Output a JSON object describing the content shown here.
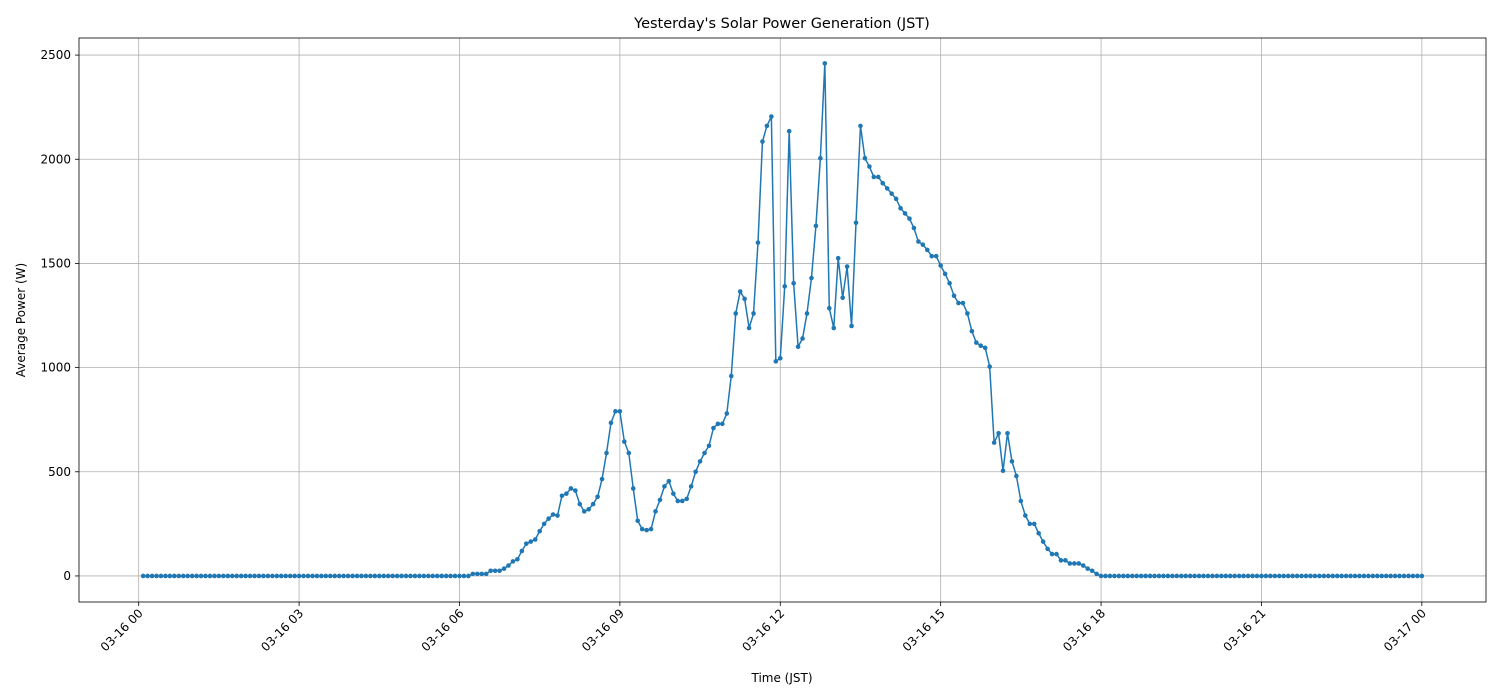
{
  "chart_data": {
    "type": "line",
    "title": "Yesterday's Solar Power Generation (JST)",
    "x_label": "Time (JST)",
    "y_label": "Average Power (W)",
    "color": "#1f77b4",
    "grid": true,
    "xlim": [
      -67,
      1512
    ],
    "ylim": [
      -125,
      2582
    ],
    "xticks": [
      {
        "value": 0,
        "label": "03-16 00"
      },
      {
        "value": 180,
        "label": "03-16 03"
      },
      {
        "value": 360,
        "label": "03-16 06"
      },
      {
        "value": 540,
        "label": "03-16 09"
      },
      {
        "value": 720,
        "label": "03-16 12"
      },
      {
        "value": 900,
        "label": "03-16 15"
      },
      {
        "value": 1080,
        "label": "03-16 18"
      },
      {
        "value": 1260,
        "label": "03-16 21"
      },
      {
        "value": 1440,
        "label": "03-17 00"
      }
    ],
    "yticks": [
      0,
      500,
      1000,
      1500,
      2000,
      2500
    ],
    "x": [
      5,
      10,
      15,
      20,
      25,
      30,
      35,
      40,
      45,
      50,
      55,
      60,
      65,
      70,
      75,
      80,
      85,
      90,
      95,
      100,
      105,
      110,
      115,
      120,
      125,
      130,
      135,
      140,
      145,
      150,
      155,
      160,
      165,
      170,
      175,
      180,
      185,
      190,
      195,
      200,
      205,
      210,
      215,
      220,
      225,
      230,
      235,
      240,
      245,
      250,
      255,
      260,
      265,
      270,
      275,
      280,
      285,
      290,
      295,
      300,
      305,
      310,
      315,
      320,
      325,
      330,
      335,
      340,
      345,
      350,
      355,
      360,
      365,
      370,
      375,
      380,
      385,
      390,
      395,
      400,
      405,
      410,
      415,
      420,
      425,
      430,
      435,
      440,
      445,
      450,
      455,
      460,
      465,
      470,
      475,
      480,
      485,
      490,
      495,
      500,
      505,
      510,
      515,
      520,
      525,
      530,
      535,
      540,
      545,
      550,
      555,
      560,
      565,
      570,
      575,
      580,
      585,
      590,
      595,
      600,
      605,
      610,
      615,
      620,
      625,
      630,
      635,
      640,
      645,
      650,
      655,
      660,
      665,
      670,
      675,
      680,
      685,
      690,
      695,
      700,
      705,
      710,
      715,
      720,
      725,
      730,
      735,
      740,
      745,
      750,
      755,
      760,
      765,
      770,
      775,
      780,
      785,
      790,
      795,
      800,
      805,
      810,
      815,
      820,
      825,
      830,
      835,
      840,
      845,
      850,
      855,
      860,
      865,
      870,
      875,
      880,
      885,
      890,
      895,
      900,
      905,
      910,
      915,
      920,
      925,
      930,
      935,
      940,
      945,
      950,
      955,
      960,
      965,
      970,
      975,
      980,
      985,
      990,
      995,
      1000,
      1005,
      1010,
      1015,
      1020,
      1025,
      1030,
      1035,
      1040,
      1045,
      1050,
      1055,
      1060,
      1065,
      1070,
      1075,
      1080,
      1085,
      1090,
      1095,
      1100,
      1105,
      1110,
      1115,
      1120,
      1125,
      1130,
      1135,
      1140,
      1145,
      1150,
      1155,
      1160,
      1165,
      1170,
      1175,
      1180,
      1185,
      1190,
      1195,
      1200,
      1205,
      1210,
      1215,
      1220,
      1225,
      1230,
      1235,
      1240,
      1245,
      1250,
      1255,
      1260,
      1265,
      1270,
      1275,
      1280,
      1285,
      1290,
      1295,
      1300,
      1305,
      1310,
      1315,
      1320,
      1325,
      1330,
      1335,
      1340,
      1345,
      1350,
      1355,
      1360,
      1365,
      1370,
      1375,
      1380,
      1385,
      1390,
      1395,
      1400,
      1405,
      1410,
      1415,
      1420,
      1425,
      1430,
      1435,
      1440
    ],
    "values": [
      0,
      0,
      0,
      0,
      0,
      0,
      0,
      0,
      0,
      0,
      0,
      0,
      0,
      0,
      0,
      0,
      0,
      0,
      0,
      0,
      0,
      0,
      0,
      0,
      0,
      0,
      0,
      0,
      0,
      0,
      0,
      0,
      0,
      0,
      0,
      0,
      0,
      0,
      0,
      0,
      0,
      0,
      0,
      0,
      0,
      0,
      0,
      0,
      0,
      0,
      0,
      0,
      0,
      0,
      0,
      0,
      0,
      0,
      0,
      0,
      0,
      0,
      0,
      0,
      0,
      0,
      0,
      0,
      0,
      0,
      0,
      0,
      0,
      0,
      10,
      10,
      10,
      10,
      25,
      25,
      25,
      35,
      50,
      70,
      80,
      120,
      155,
      165,
      175,
      215,
      250,
      275,
      295,
      290,
      385,
      395,
      420,
      410,
      345,
      310,
      320,
      345,
      380,
      465,
      590,
      735,
      790,
      790,
      645,
      590,
      420,
      265,
      225,
      220,
      225,
      310,
      365,
      430,
      455,
      395,
      360,
      360,
      370,
      430,
      500,
      550,
      590,
      625,
      710,
      730,
      730,
      780,
      960,
      1260,
      1365,
      1330,
      1190,
      1260,
      1600,
      2085,
      2160,
      2205,
      1030,
      1045,
      1390,
      2135,
      1405,
      1100,
      1140,
      1260,
      1430,
      1680,
      2005,
      2460,
      1285,
      1190,
      1525,
      1335,
      1485,
      1200,
      1695,
      2160,
      2005,
      1965,
      1915,
      1915,
      1885,
      1860,
      1835,
      1810,
      1765,
      1740,
      1715,
      1670,
      1605,
      1590,
      1565,
      1535,
      1535,
      1490,
      1450,
      1405,
      1345,
      1310,
      1310,
      1260,
      1175,
      1120,
      1105,
      1095,
      1005,
      640,
      685,
      505,
      685,
      550,
      480,
      360,
      290,
      250,
      250,
      205,
      165,
      130,
      105,
      105,
      75,
      75,
      60,
      60,
      60,
      50,
      35,
      25,
      10,
      0,
      0,
      0,
      0,
      0,
      0,
      0,
      0,
      0,
      0,
      0,
      0,
      0,
      0,
      0,
      0,
      0,
      0,
      0,
      0,
      0,
      0,
      0,
      0,
      0,
      0,
      0,
      0,
      0,
      0,
      0,
      0,
      0,
      0,
      0,
      0,
      0,
      0,
      0,
      0,
      0,
      0,
      0,
      0,
      0,
      0,
      0,
      0,
      0,
      0,
      0,
      0,
      0,
      0,
      0,
      0,
      0,
      0,
      0,
      0,
      0,
      0,
      0,
      0,
      0,
      0,
      0,
      0,
      0,
      0,
      0,
      0,
      0
    ]
  }
}
